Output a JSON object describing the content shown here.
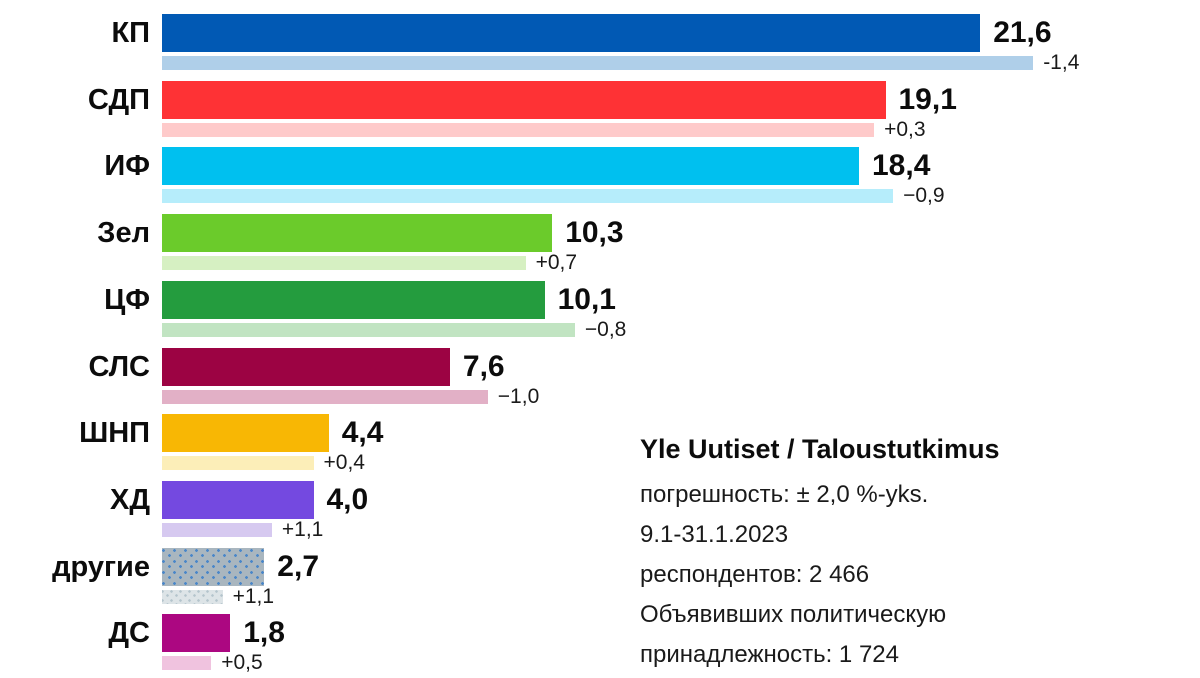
{
  "chart_data": {
    "type": "bar",
    "orientation": "horizontal",
    "unit": "% support",
    "legend_position": "none",
    "grid": false,
    "x_range": [
      0,
      27
    ],
    "categories": [
      "КП",
      "СДП",
      "ИФ",
      "Зел",
      "ЦФ",
      "СЛС",
      "ШНП",
      "ХД",
      "другие",
      "ДС"
    ],
    "series": [
      {
        "name": "current_support_pct",
        "values": [
          21.6,
          19.1,
          18.4,
          10.3,
          10.1,
          7.6,
          4.4,
          4.0,
          2.7,
          1.8
        ]
      },
      {
        "name": "change_pct_points",
        "values": [
          -1.4,
          0.3,
          -0.9,
          0.7,
          -0.8,
          -1.0,
          0.4,
          1.1,
          1.1,
          0.5
        ]
      },
      {
        "name": "previous_support_pct_derived",
        "values": [
          23.0,
          18.8,
          19.3,
          9.6,
          10.9,
          8.6,
          4.0,
          2.9,
          1.6,
          1.3
        ]
      }
    ],
    "parties": [
      {
        "label": "КП",
        "value": 21.6,
        "value_label": "21,6",
        "change": -1.4,
        "change_label": "-1,4",
        "color": "#0159B4",
        "light_color": "#AFCFE9",
        "pattern": "solid"
      },
      {
        "label": "СДП",
        "value": 19.1,
        "value_label": "19,1",
        "change": 0.3,
        "change_label": "+0,3",
        "color": "#FE3235",
        "light_color": "#FECACA",
        "pattern": "solid"
      },
      {
        "label": "ИФ",
        "value": 18.4,
        "value_label": "18,4",
        "change": -0.9,
        "change_label": "−0,9",
        "color": "#00C0EF",
        "light_color": "#B6EDFB",
        "pattern": "solid"
      },
      {
        "label": "Зел",
        "value": 10.3,
        "value_label": "10,3",
        "change": 0.7,
        "change_label": "+0,7",
        "color": "#6BCB2B",
        "light_color": "#D6F0C2",
        "pattern": "solid"
      },
      {
        "label": "ЦФ",
        "value": 10.1,
        "value_label": "10,1",
        "change": -0.8,
        "change_label": "−0,8",
        "color": "#249C3E",
        "light_color": "#C1E4C2",
        "pattern": "solid"
      },
      {
        "label": "СЛС",
        "value": 7.6,
        "value_label": "7,6",
        "change": -1.0,
        "change_label": "−1,0",
        "color": "#9C0343",
        "light_color": "#E2B0C6",
        "pattern": "solid"
      },
      {
        "label": "ШНП",
        "value": 4.4,
        "value_label": "4,4",
        "change": 0.4,
        "change_label": "+0,4",
        "color": "#F8B704",
        "light_color": "#FCEEB8",
        "pattern": "solid"
      },
      {
        "label": "ХД",
        "value": 4.0,
        "value_label": "4,0",
        "change": 1.1,
        "change_label": "+1,1",
        "color": "#7449E0",
        "light_color": "#D6C9F0",
        "pattern": "solid"
      },
      {
        "label": "другие",
        "value": 2.7,
        "value_label": "2,7",
        "change": 1.1,
        "change_label": "+1,1",
        "color": "#A9B6BF",
        "light_color": "#DDE4E7",
        "pattern": "dots"
      },
      {
        "label": "ДС",
        "value": 1.8,
        "value_label": "1,8",
        "change": 0.5,
        "change_label": "+0,5",
        "color": "#AC0781",
        "light_color": "#F0C3DF",
        "pattern": "solid"
      }
    ]
  },
  "info": {
    "title": "Yle Uutiset / Taloustutkimus",
    "lines": [
      "погрешность: ± 2,0 %-yks.",
      "9.1-31.1.2023",
      "респондентов: 2 466",
      "Объявивших политическую",
      "принадлежность: 1 724"
    ]
  }
}
